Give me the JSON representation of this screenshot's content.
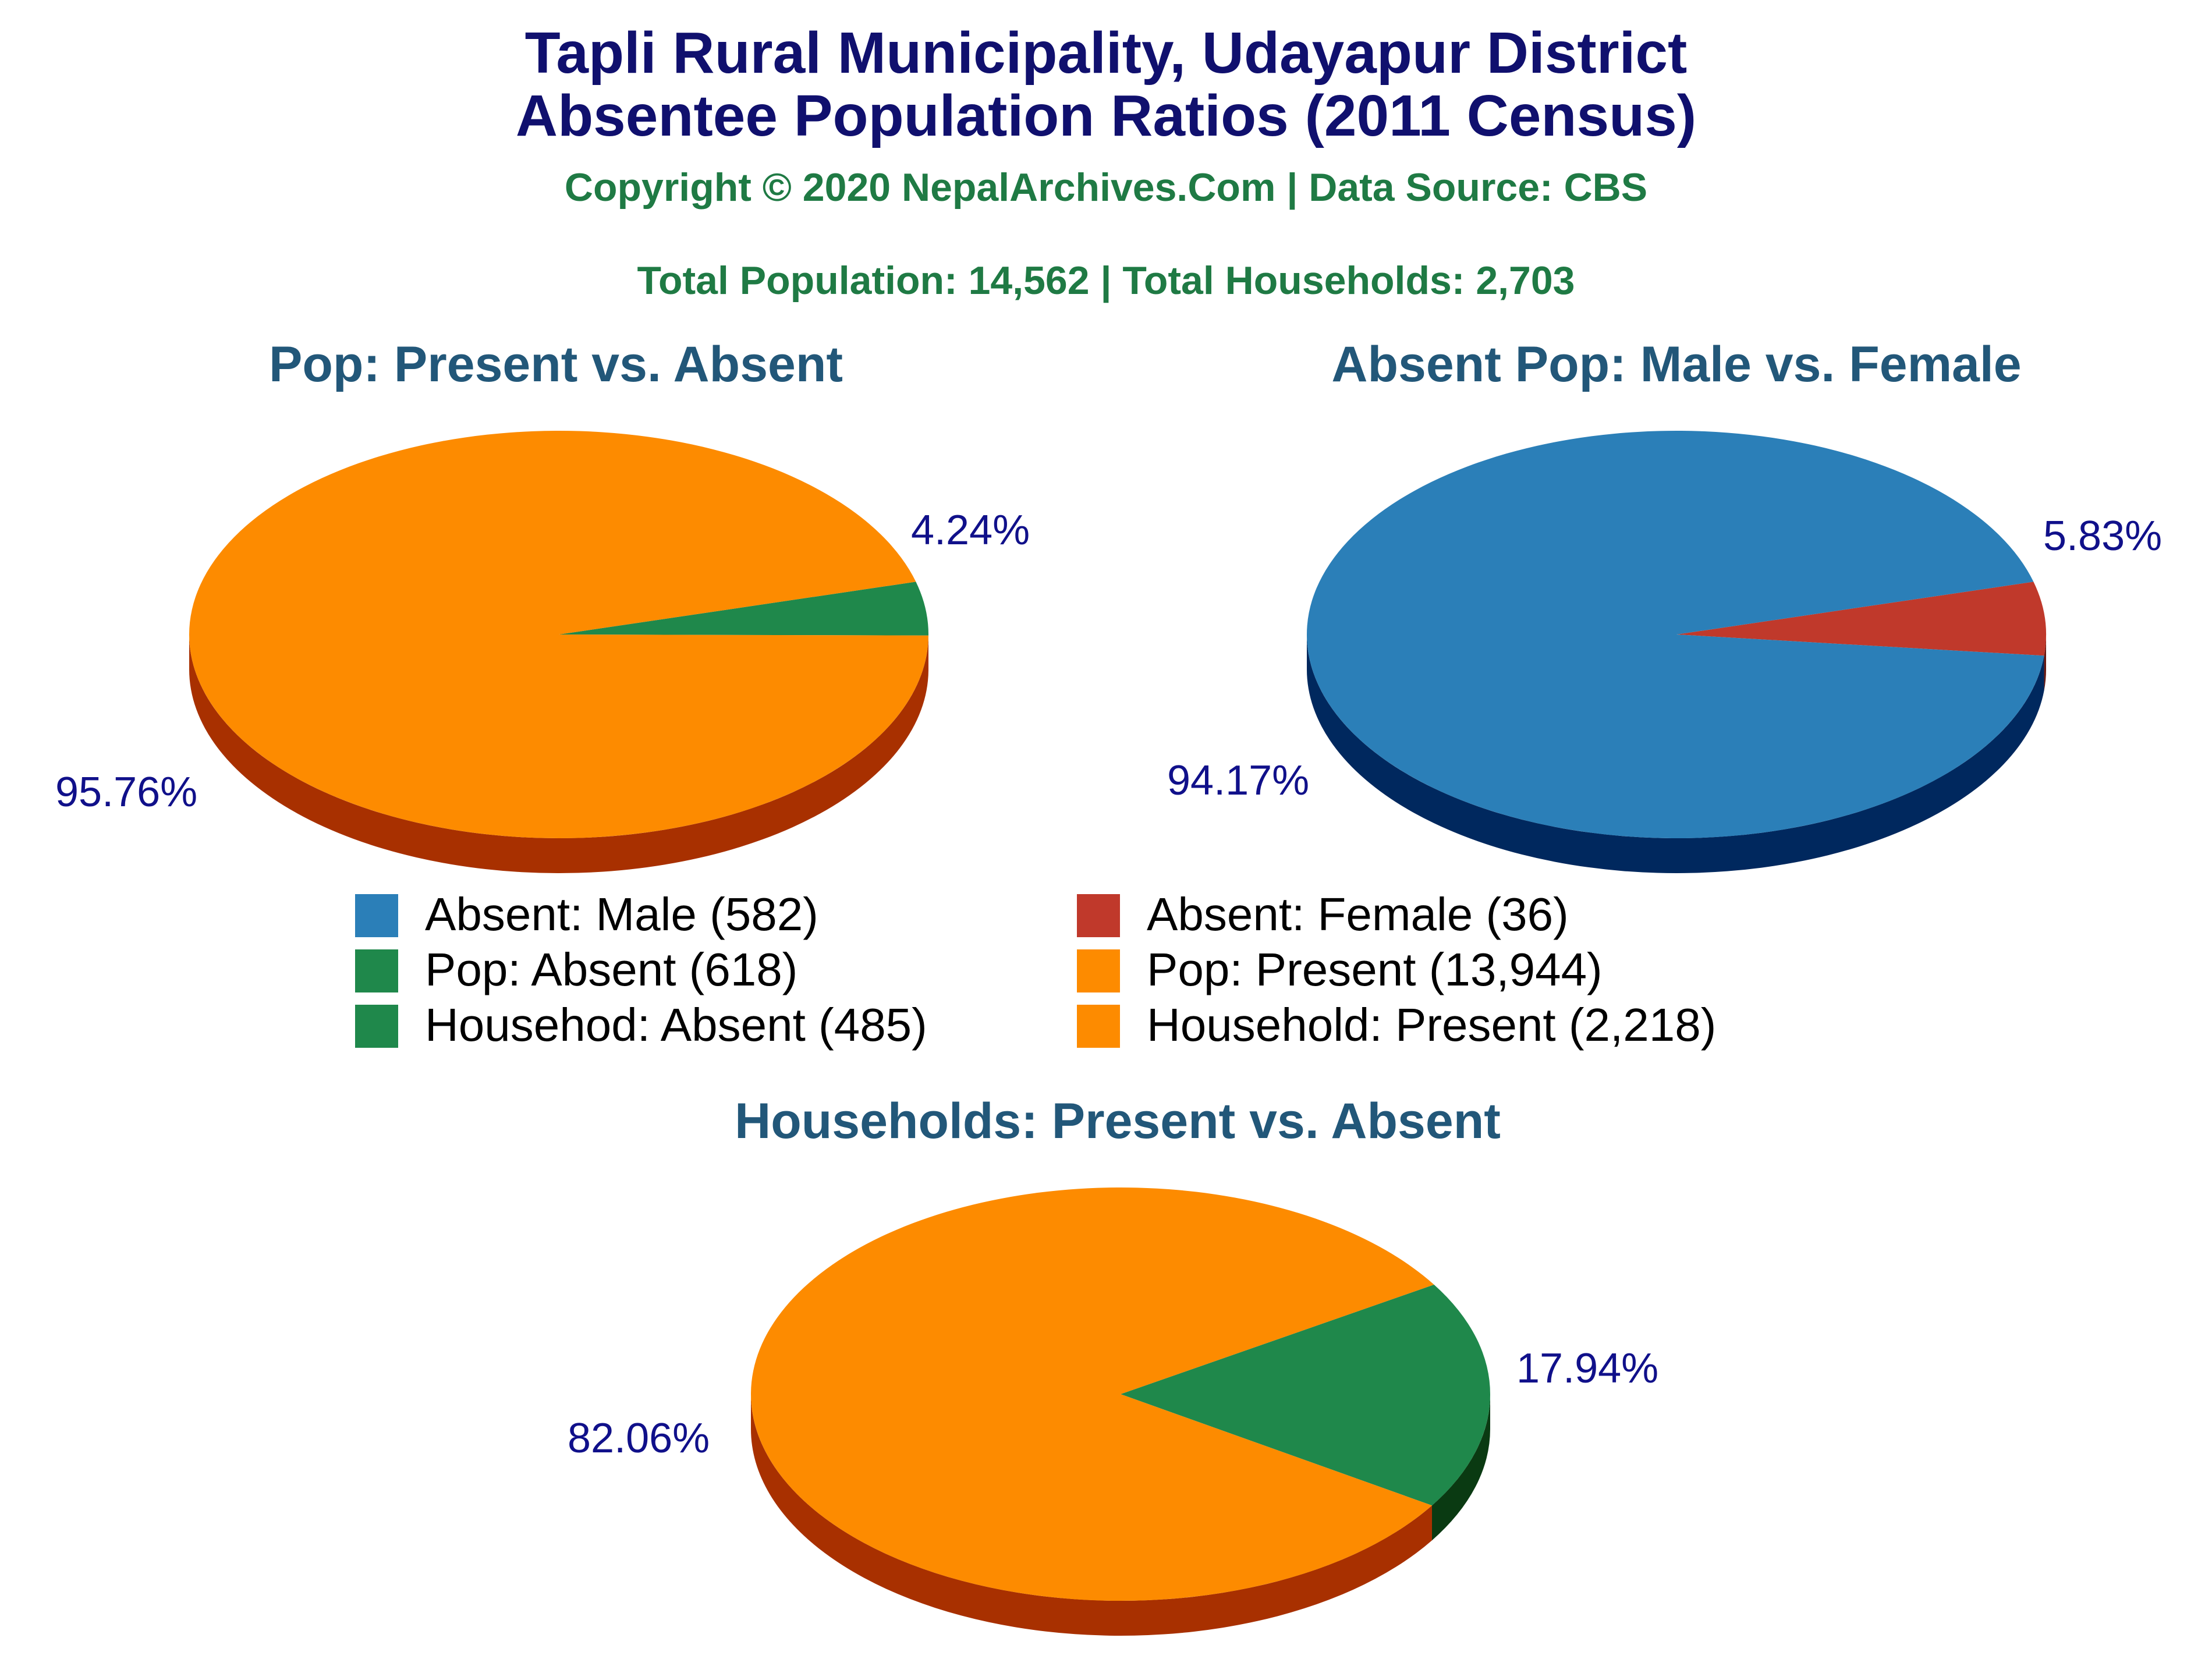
{
  "header": {
    "title_line1": "Tapli Rural Municipality, Udayapur District",
    "title_line2": "Absentee Population Ratios (2011 Census)",
    "copyright": "Copyright © 2020 NepalArchives.Com | Data Source: CBS",
    "totals": "Total Population: 14,562 | Total Households: 2,703"
  },
  "legend": [
    {
      "label": "Absent: Male (582)",
      "color": "#2b7fb8"
    },
    {
      "label": "Absent: Female (36)",
      "color": "#c0392b"
    },
    {
      "label": "Pop: Absent (618)",
      "color": "#1f884b"
    },
    {
      "label": "Pop: Present (13,944)",
      "color": "#fd8b00"
    },
    {
      "label": "Househod: Absent (485)",
      "color": "#1f884b"
    },
    {
      "label": "Household: Present (2,218)",
      "color": "#fd8b00"
    }
  ],
  "chart_data": [
    {
      "type": "pie",
      "title": "Pop: Present vs. Absent",
      "slices": [
        {
          "name": "Pop: Absent",
          "value": 618,
          "percent_label": "4.24%",
          "color": "#1f884b",
          "side_color": "#0f4a22"
        },
        {
          "name": "Pop: Present",
          "value": 13944,
          "percent_label": "95.76%",
          "color": "#fd8b00",
          "side_color": "#a83000"
        }
      ]
    },
    {
      "type": "pie",
      "title": "Absent Pop: Male vs. Female",
      "slices": [
        {
          "name": "Absent: Female",
          "value": 36,
          "percent_label": "5.83%",
          "color": "#c0392b",
          "side_color": "#6a1810"
        },
        {
          "name": "Absent: Male",
          "value": 582,
          "percent_label": "94.17%",
          "color": "#2b7fb8",
          "side_color": "#00285e"
        }
      ]
    },
    {
      "type": "pie",
      "title": "Households: Present vs. Absent",
      "slices": [
        {
          "name": "Househod: Absent",
          "value": 485,
          "percent_label": "17.94%",
          "color": "#1f884b",
          "side_color": "#0a3a12"
        },
        {
          "name": "Household: Present",
          "value": 2218,
          "percent_label": "82.06%",
          "color": "#fd8b00",
          "side_color": "#a83000"
        }
      ]
    }
  ]
}
